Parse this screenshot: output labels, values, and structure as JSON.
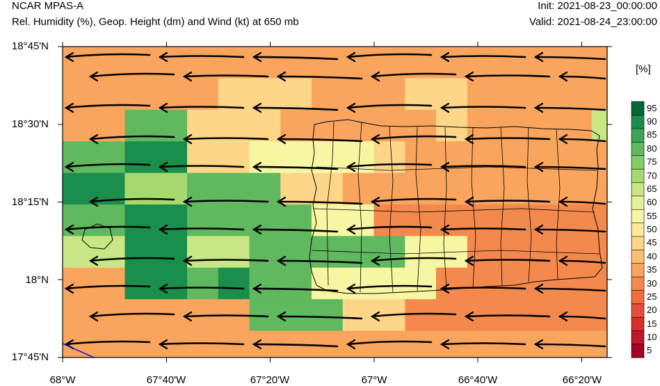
{
  "header": {
    "model": "NCAR MPAS-A",
    "description": "Rel. Humidity (%), Geop. Height (dm) and Wind (kt) at 650 mb",
    "init": "Init: 2021-08-23_00:00:00",
    "valid": "Valid: 2021-08-24_23:00:00"
  },
  "axes": {
    "lat_labels": [
      "18°45'N",
      "18°30'N",
      "18°15'N",
      "18°N",
      "17°45'N"
    ],
    "lon_labels": [
      "68°W",
      "67°40'W",
      "67°20'W",
      "67°W",
      "66°40'W",
      "66°20'W"
    ]
  },
  "colorbar": {
    "unit": "[%]",
    "levels": [
      "5",
      "10",
      "15",
      "20",
      "25",
      "30",
      "35",
      "40",
      "45",
      "50",
      "55",
      "60",
      "65",
      "70",
      "75",
      "80",
      "85",
      "90",
      "95"
    ],
    "colors": [
      "#a50026",
      "#c0152a",
      "#d7302a",
      "#e54f35",
      "#f16b3d",
      "#f4894e",
      "#f9a55e",
      "#fdbf72",
      "#fed689",
      "#fee99d",
      "#f7f6a3",
      "#e2f29a",
      "#c8e784",
      "#a8d970",
      "#86cb66",
      "#60b85f",
      "#3ea457",
      "#1a8e4c",
      "#006837"
    ],
    "tick_values": [
      "5",
      "10",
      "15",
      "20",
      "25",
      "30",
      "35",
      "40",
      "45",
      "50",
      "55",
      "60",
      "65",
      "70",
      "75",
      "80",
      "85",
      "90",
      "95"
    ]
  },
  "map": {
    "lat_range": [
      17.75,
      18.75
    ],
    "lon_range": [
      -68.0,
      -66.25
    ],
    "field": "relative_humidity_650mb",
    "wind_direction": "easterly"
  }
}
